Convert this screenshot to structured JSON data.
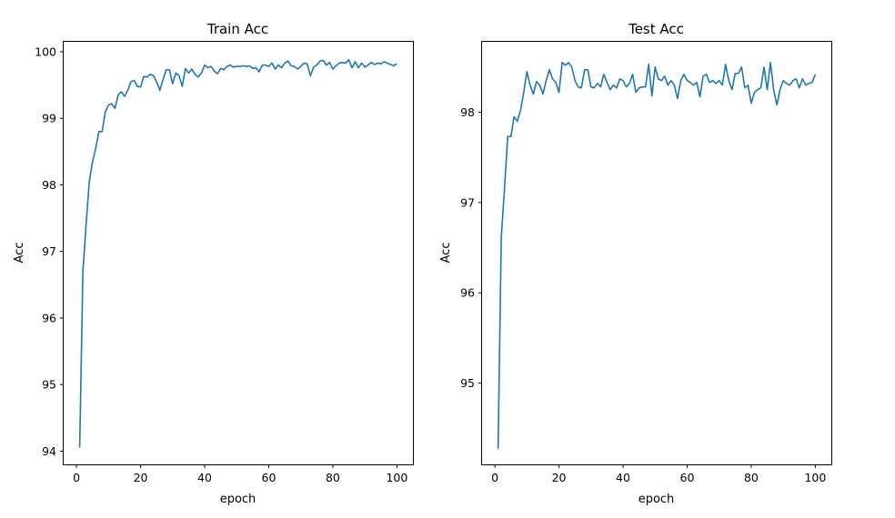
{
  "chart_data": [
    {
      "type": "line",
      "title": "Train Acc",
      "xlabel": "epoch",
      "ylabel": "Acc",
      "xlim": [
        -4,
        105
      ],
      "ylim": [
        93.8,
        100.15
      ],
      "xticks": [
        0,
        20,
        40,
        60,
        80,
        100
      ],
      "yticks": [
        94,
        95,
        96,
        97,
        98,
        99,
        100
      ],
      "grid": false,
      "legend": "none",
      "color": "#1f77b4",
      "series": [
        {
          "x": [
            1,
            2,
            3,
            4,
            5,
            6,
            7,
            8,
            9,
            10,
            11,
            12,
            13,
            14,
            15,
            16,
            17,
            18,
            19,
            20,
            21,
            22,
            23,
            24,
            25,
            26,
            27,
            28,
            29,
            30,
            31,
            32,
            33,
            34,
            35,
            36,
            37,
            38,
            39,
            40,
            41,
            42,
            43,
            44,
            45,
            46,
            47,
            48,
            49,
            50,
            51,
            52,
            53,
            54,
            55,
            56,
            57,
            58,
            59,
            60,
            61,
            62,
            63,
            64,
            65,
            66,
            67,
            68,
            69,
            70,
            71,
            72,
            73,
            74,
            75,
            76,
            77,
            78,
            79,
            80,
            81,
            82,
            83,
            84,
            85,
            86,
            87,
            88,
            89,
            90,
            91,
            92,
            93,
            94,
            95,
            96,
            97,
            98,
            99,
            100
          ],
          "values": [
            94.05,
            96.7,
            97.4,
            98.05,
            98.35,
            98.55,
            98.8,
            98.8,
            99.1,
            99.2,
            99.22,
            99.15,
            99.35,
            99.4,
            99.33,
            99.42,
            99.55,
            99.57,
            99.48,
            99.47,
            99.63,
            99.62,
            99.66,
            99.64,
            99.55,
            99.42,
            99.58,
            99.73,
            99.73,
            99.52,
            99.68,
            99.64,
            99.48,
            99.75,
            99.68,
            99.74,
            99.66,
            99.62,
            99.68,
            99.8,
            99.76,
            99.78,
            99.71,
            99.67,
            99.75,
            99.73,
            99.78,
            99.8,
            99.77,
            99.78,
            99.78,
            99.79,
            99.78,
            99.79,
            99.75,
            99.76,
            99.7,
            99.8,
            99.8,
            99.78,
            99.83,
            99.74,
            99.8,
            99.76,
            99.83,
            99.86,
            99.79,
            99.78,
            99.74,
            99.78,
            99.83,
            99.82,
            99.64,
            99.77,
            99.8,
            99.86,
            99.87,
            99.8,
            99.84,
            99.74,
            99.79,
            99.83,
            99.84,
            99.83,
            99.88,
            99.76,
            99.85,
            99.76,
            99.83,
            99.77,
            99.8,
            99.84,
            99.81,
            99.83,
            99.82,
            99.85,
            99.83,
            99.81,
            99.79,
            99.82
          ]
        }
      ]
    },
    {
      "type": "line",
      "title": "Test Acc",
      "xlabel": "epoch",
      "ylabel": "Acc",
      "xlim": [
        -4,
        105
      ],
      "ylim": [
        94.1,
        98.78
      ],
      "xticks": [
        0,
        20,
        40,
        60,
        80,
        100
      ],
      "yticks": [
        95,
        96,
        97,
        98
      ],
      "grid": false,
      "legend": "none",
      "color": "#1f77b4",
      "series": [
        {
          "x": [
            1,
            2,
            3,
            4,
            5,
            6,
            7,
            8,
            9,
            10,
            11,
            12,
            13,
            14,
            15,
            16,
            17,
            18,
            19,
            20,
            21,
            22,
            23,
            24,
            25,
            26,
            27,
            28,
            29,
            30,
            31,
            32,
            33,
            34,
            35,
            36,
            37,
            38,
            39,
            40,
            41,
            42,
            43,
            44,
            45,
            46,
            47,
            48,
            49,
            50,
            51,
            52,
            53,
            54,
            55,
            56,
            57,
            58,
            59,
            60,
            61,
            62,
            63,
            64,
            65,
            66,
            67,
            68,
            69,
            70,
            71,
            72,
            73,
            74,
            75,
            76,
            77,
            78,
            79,
            80,
            81,
            82,
            83,
            84,
            85,
            86,
            87,
            88,
            89,
            90,
            91,
            92,
            93,
            94,
            95,
            96,
            97,
            98,
            99,
            100
          ],
          "values": [
            94.27,
            96.62,
            97.15,
            97.73,
            97.73,
            97.95,
            97.9,
            98.02,
            98.22,
            98.45,
            98.3,
            98.2,
            98.34,
            98.3,
            98.2,
            98.35,
            98.47,
            98.37,
            98.33,
            98.22,
            98.55,
            98.52,
            98.55,
            98.5,
            98.35,
            98.28,
            98.27,
            98.47,
            98.47,
            98.28,
            98.27,
            98.32,
            98.28,
            98.42,
            98.33,
            98.25,
            98.3,
            98.27,
            98.37,
            98.35,
            98.28,
            98.32,
            98.42,
            98.22,
            98.27,
            98.28,
            98.28,
            98.53,
            98.18,
            98.5,
            98.37,
            98.35,
            98.4,
            98.3,
            98.35,
            98.3,
            98.15,
            98.35,
            98.42,
            98.35,
            98.33,
            98.3,
            98.33,
            98.17,
            98.4,
            98.42,
            98.33,
            98.35,
            98.32,
            98.35,
            98.3,
            98.53,
            98.35,
            98.25,
            98.43,
            98.43,
            98.5,
            98.27,
            98.3,
            98.1,
            98.22,
            98.25,
            98.27,
            98.5,
            98.25,
            98.55,
            98.25,
            98.08,
            98.25,
            98.35,
            98.32,
            98.3,
            98.35,
            98.37,
            98.27,
            98.37,
            98.3,
            98.32,
            98.33,
            98.42
          ]
        }
      ]
    }
  ]
}
